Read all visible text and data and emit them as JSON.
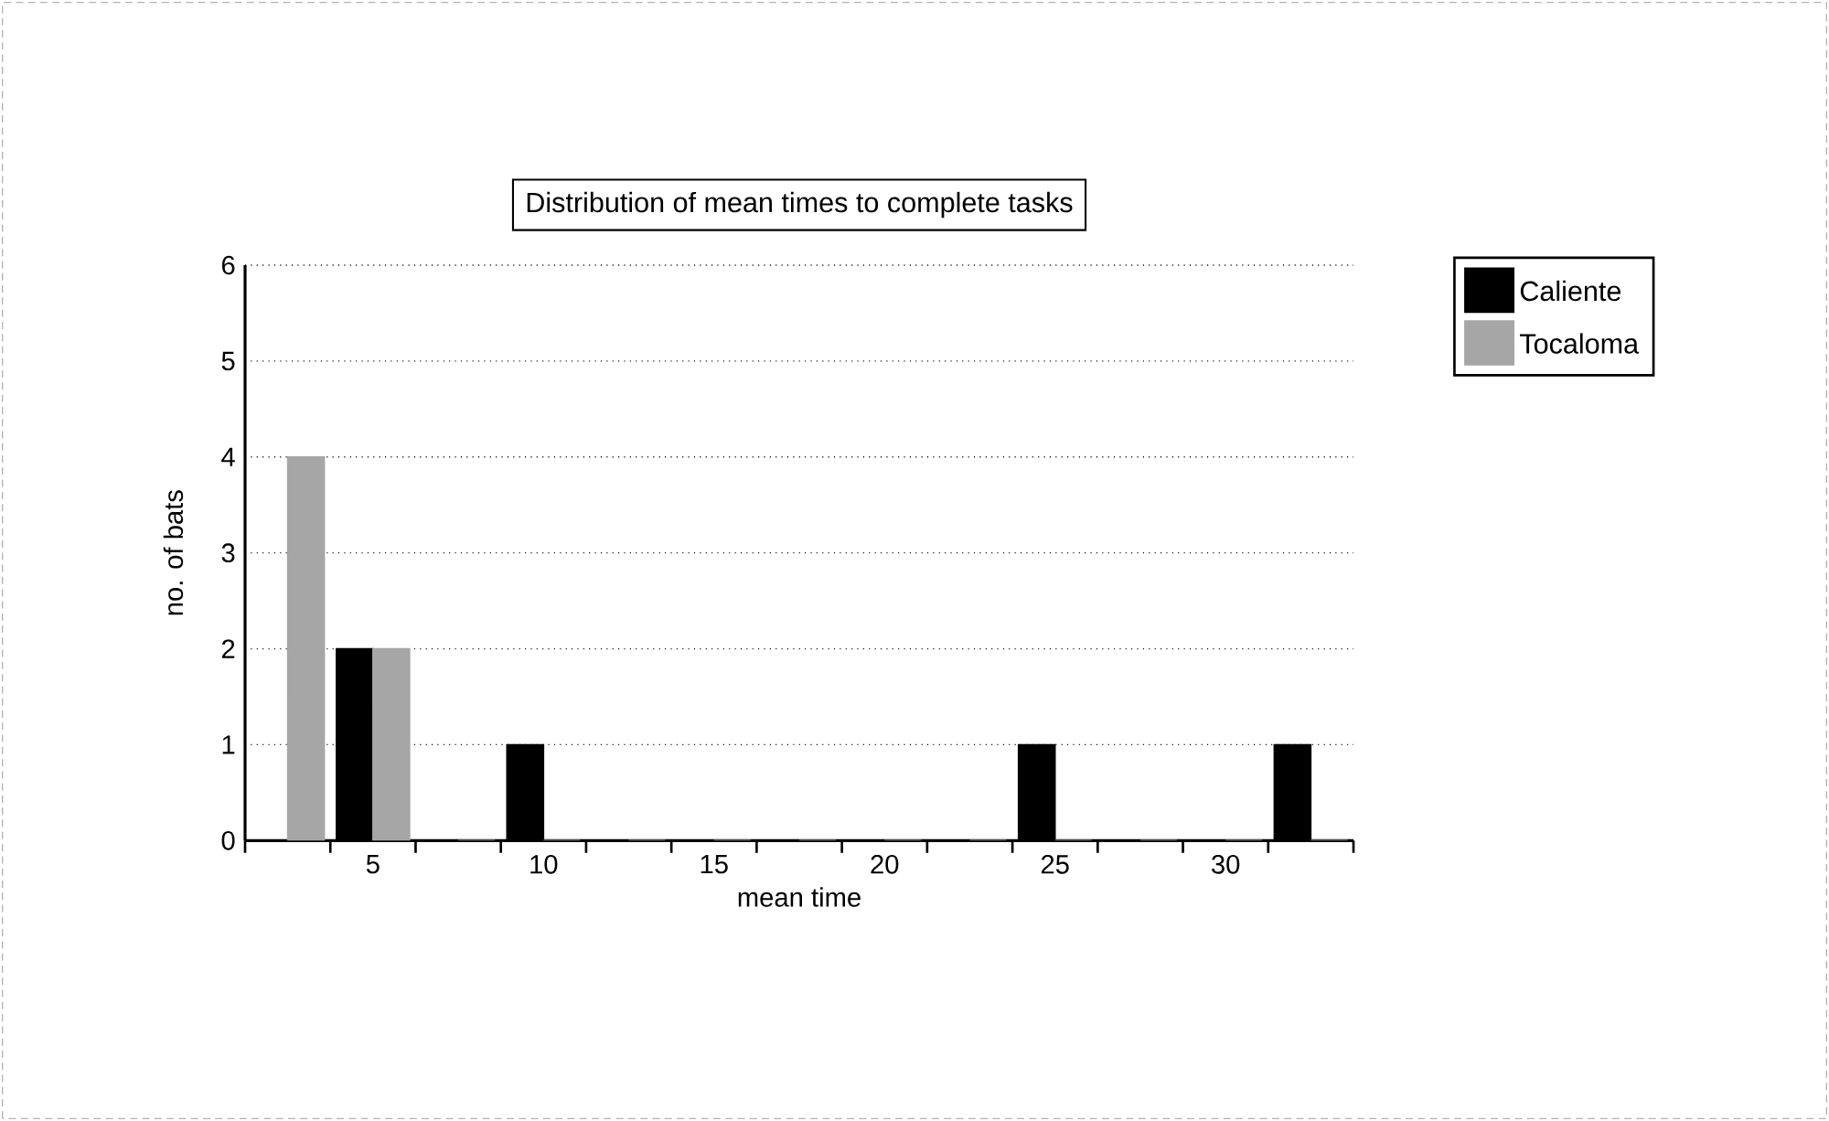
{
  "chart_data": {
    "type": "bar",
    "title": "Distribution of mean times to complete tasks",
    "xlabel": "mean time",
    "ylabel": "no. of bats",
    "categories": [
      null,
      "5",
      null,
      "10",
      null,
      "15",
      null,
      "20",
      null,
      "25",
      null,
      "30",
      null
    ],
    "series": [
      {
        "name": "Caliente",
        "color": "#000000",
        "values": [
          0,
          2,
          0,
          1,
          0,
          0,
          0,
          0,
          0,
          1,
          0,
          0,
          1
        ]
      },
      {
        "name": "Tocaloma",
        "color": "#a6a6a6",
        "values": [
          4,
          2,
          0,
          0,
          0,
          0,
          0,
          0,
          0,
          0,
          0,
          0,
          0
        ]
      }
    ],
    "ylim": [
      0,
      6
    ],
    "yticks": [
      0,
      1,
      2,
      3,
      4,
      5,
      6
    ],
    "grid": "y",
    "legend": "top right"
  }
}
